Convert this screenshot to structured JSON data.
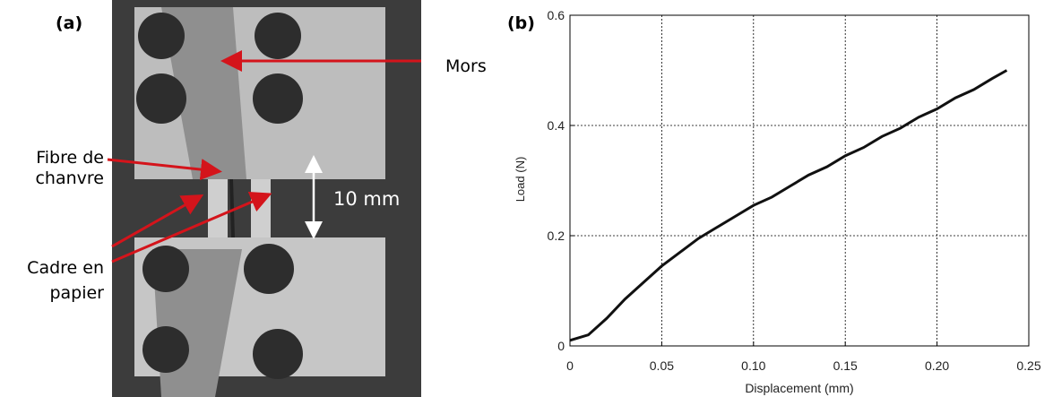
{
  "panel_a": {
    "label": "(a)",
    "jaw": "Mors",
    "fibre": [
      "Fibre de",
      "chanvre"
    ],
    "frame": [
      "Cadre en",
      "papier"
    ],
    "gauge": "10 mm"
  },
  "chart_data": {
    "type": "line",
    "panel_label": "(b)",
    "xlabel": "Displacement (mm)",
    "ylabel": "Load (N)",
    "x": [
      0,
      0.01,
      0.02,
      0.03,
      0.04,
      0.05,
      0.06,
      0.07,
      0.08,
      0.09,
      0.1,
      0.11,
      0.12,
      0.13,
      0.14,
      0.15,
      0.16,
      0.17,
      0.18,
      0.19,
      0.2,
      0.21,
      0.22,
      0.23,
      0.238
    ],
    "values": [
      0.01,
      0.02,
      0.05,
      0.085,
      0.115,
      0.145,
      0.17,
      0.195,
      0.215,
      0.235,
      0.255,
      0.27,
      0.29,
      0.31,
      0.325,
      0.345,
      0.36,
      0.38,
      0.395,
      0.415,
      0.43,
      0.45,
      0.465,
      0.485,
      0.5
    ],
    "color": "#111111",
    "xlim": [
      0,
      0.25
    ],
    "ylim": [
      0,
      0.6
    ],
    "xticks": [
      0,
      0.05,
      {
        "value": 0.1,
        "label": "0.10"
      },
      0.15,
      {
        "value": 0.2,
        "label": "0.20"
      },
      0.25
    ],
    "yticks": [
      0,
      0.2,
      0.4,
      0.6
    ],
    "grid": true
  }
}
